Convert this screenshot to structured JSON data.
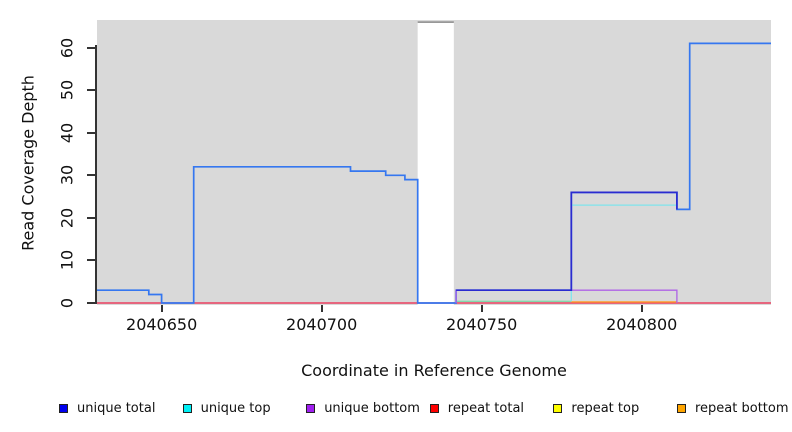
{
  "axes": {
    "ylabel": "Read Coverage Depth",
    "xlabel": "Coordinate in Reference Genome",
    "yticks": [
      0,
      10,
      20,
      30,
      40,
      50,
      60
    ],
    "xticks": [
      2040650,
      2040700,
      2040750,
      2040800
    ]
  },
  "legend": [
    {
      "label": "unique total",
      "color": "#0000ee"
    },
    {
      "label": "unique top",
      "color": "#00f0f5"
    },
    {
      "label": "unique bottom",
      "color": "#a020f0"
    },
    {
      "label": "repeat total",
      "color": "#ff0000"
    },
    {
      "label": "repeat top",
      "color": "#ffff00"
    },
    {
      "label": "repeat bottom",
      "color": "#ffa500"
    }
  ],
  "chart_data": {
    "type": "line",
    "subtype": "step-coverage",
    "title": "",
    "xlabel": "Coordinate in Reference Genome",
    "ylabel": "Read Coverage Depth",
    "xlim": [
      2040629.8,
      2040840.4
    ],
    "ylim": [
      -0.47,
      66.5
    ],
    "plot_bg": "#d9d9d9",
    "grid": false,
    "legend_position": "bottom",
    "gap_region": {
      "x0": 2040730,
      "x1": 2040741.3,
      "y_top": 66,
      "fill": "#ffffff",
      "border": "#8a8a8a"
    },
    "series": [
      {
        "name": "repeat total",
        "color": "#ea4160",
        "width": 1.4,
        "points": [
          [
            2040629.8,
            0
          ],
          [
            2040840.4,
            0
          ]
        ]
      },
      {
        "name": "unique top (near zero)",
        "color": "#84d8ab",
        "width": 1.3,
        "points": [
          [
            2040742,
            0.4
          ],
          [
            2040778,
            0.4
          ]
        ]
      },
      {
        "name": "repeat bottom",
        "color": "#ff9e2a",
        "width": 1.4,
        "points": [
          [
            2040778,
            0.25
          ],
          [
            2040811,
            0.25
          ]
        ]
      },
      {
        "name": "total coverage",
        "color": "#3577f0",
        "width": 1.7,
        "points": [
          [
            2040629.8,
            3
          ],
          [
            2040646,
            3
          ],
          [
            2040646,
            2
          ],
          [
            2040650,
            2
          ],
          [
            2040650,
            0
          ],
          [
            2040660,
            0
          ],
          [
            2040660,
            32
          ],
          [
            2040709,
            32
          ],
          [
            2040709,
            31
          ],
          [
            2040720,
            31
          ],
          [
            2040720,
            30
          ],
          [
            2040726,
            30
          ],
          [
            2040726,
            29
          ],
          [
            2040730,
            29
          ],
          [
            2040730,
            0
          ],
          [
            2040742,
            0
          ],
          [
            2040742,
            3
          ],
          [
            2040778,
            3
          ],
          [
            2040778,
            26
          ],
          [
            2040811,
            26
          ],
          [
            2040811,
            22
          ],
          [
            2040815,
            22
          ],
          [
            2040815,
            61
          ],
          [
            2040840.4,
            61
          ]
        ]
      },
      {
        "name": "unique bottom",
        "color": "#ae63e6",
        "width": 1.3,
        "points": [
          [
            2040742,
            0
          ],
          [
            2040742,
            3
          ],
          [
            2040811,
            3
          ],
          [
            2040811,
            0
          ]
        ]
      },
      {
        "name": "unique top",
        "color": "#7fe4ec",
        "width": 1.3,
        "points": [
          [
            2040778,
            0.4
          ],
          [
            2040778,
            23
          ],
          [
            2040811,
            23
          ]
        ]
      },
      {
        "name": "unique total",
        "color": "#2b2bd0",
        "width": 1.7,
        "points": [
          [
            2040742,
            3
          ],
          [
            2040778,
            3
          ],
          [
            2040778,
            26
          ],
          [
            2040811,
            26
          ],
          [
            2040811,
            22
          ]
        ]
      }
    ]
  }
}
